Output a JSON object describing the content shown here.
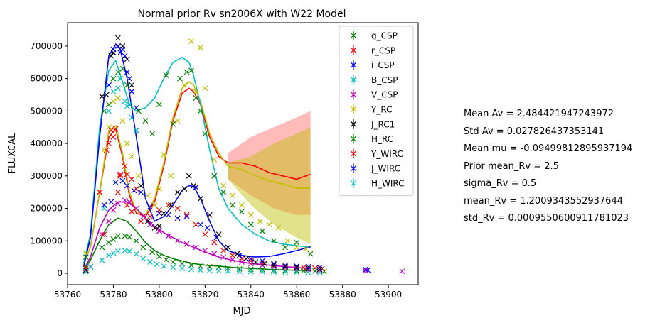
{
  "chart_data": {
    "type": "scatter",
    "title": "Normal prior Rv sn2006X with W22 Model",
    "xlabel": "MJD",
    "ylabel": "FLUXCAL",
    "xlim": [
      53760,
      53913
    ],
    "ylim": [
      -35000,
      772000
    ],
    "xticks": [
      53760,
      53780,
      53800,
      53820,
      53840,
      53860,
      53880,
      53900
    ],
    "yticks": [
      0,
      100000,
      200000,
      300000,
      400000,
      500000,
      600000,
      700000
    ],
    "grid": false,
    "legend_position": "top-right",
    "series": [
      {
        "name": "g_CSP",
        "color": "#008000",
        "x": [
          53768,
          53775,
          53778,
          53780,
          53782,
          53785,
          53787,
          53790,
          53793,
          53797,
          53800,
          53803,
          53806,
          53810,
          53814,
          53818,
          53822,
          53826,
          53830,
          53835,
          53840,
          53845,
          53850,
          53855,
          53860,
          53863,
          53868,
          53872
        ],
        "y": [
          20000,
          80000,
          95000,
          105000,
          115000,
          115000,
          112000,
          100000,
          80000,
          65000,
          52000,
          42000,
          35000,
          30000,
          25000,
          22000,
          20000,
          18000,
          15000,
          13000,
          12000,
          11000,
          10000,
          9000,
          8000,
          8000,
          7000,
          6000
        ]
      },
      {
        "name": "r_CSP",
        "color": "#ff0000",
        "x": [
          53768,
          53774,
          53777,
          53779,
          53781,
          53783,
          53786,
          53788,
          53792,
          53796,
          53800,
          53804,
          53808,
          53812,
          53816,
          53820,
          53824,
          53828,
          53832,
          53836,
          53840,
          53845,
          53850,
          53855,
          53860,
          53863,
          53868,
          53871
        ],
        "y": [
          15000,
          250000,
          380000,
          440000,
          445000,
          300000,
          210000,
          190000,
          160000,
          175000,
          195000,
          210000,
          200000,
          180000,
          150000,
          120000,
          95000,
          70000,
          55000,
          45000,
          38000,
          32000,
          28000,
          24000,
          20000,
          18000,
          16000,
          14000
        ]
      },
      {
        "name": "i_CSP",
        "color": "#0000ff",
        "x": [
          53768,
          53776,
          53779,
          53781,
          53784,
          53786,
          53789,
          53792,
          53796,
          53800,
          53804,
          53808,
          53812,
          53816,
          53818,
          53821,
          53825,
          53830,
          53835,
          53840,
          53845,
          53850,
          53855,
          53860,
          53865,
          53870,
          53890,
          53891
        ],
        "y": [
          10000,
          210000,
          220000,
          280000,
          285000,
          270000,
          255000,
          250000,
          205000,
          185000,
          180000,
          170000,
          175000,
          265000,
          150000,
          140000,
          110000,
          80000,
          55000,
          45000,
          38000,
          30000,
          25000,
          22000,
          20000,
          18000,
          12000,
          10000
        ]
      },
      {
        "name": "B_CSP",
        "color": "#00bfbf",
        "x": [
          53768,
          53775,
          53778,
          53780,
          53782,
          53785,
          53787,
          53790,
          53793,
          53796,
          53799,
          53802,
          53806,
          53810,
          53814,
          53818,
          53822,
          53826,
          53830,
          53835,
          53840,
          53845,
          53850,
          53855,
          53860,
          53865,
          53870
        ],
        "y": [
          5000,
          40000,
          55000,
          62000,
          68000,
          70000,
          68000,
          60000,
          45000,
          35000,
          28000,
          22000,
          18000,
          15000,
          12000,
          10000,
          9000,
          8000,
          7000,
          6000,
          5000,
          5000,
          4000,
          4000,
          3500,
          3000,
          3000
        ]
      },
      {
        "name": "V_CSP",
        "color": "#bf00bf",
        "x": [
          53768,
          53775,
          53778,
          53780,
          53782,
          53785,
          53787,
          53790,
          53793,
          53796,
          53800,
          53804,
          53808,
          53812,
          53816,
          53820,
          53824,
          53828,
          53832,
          53836,
          53840,
          53845,
          53850,
          53855,
          53860,
          53865,
          53870,
          53890,
          53906
        ],
        "y": [
          10000,
          120000,
          160000,
          195000,
          215000,
          225000,
          220000,
          200000,
          175000,
          150000,
          130000,
          115000,
          100000,
          90000,
          80000,
          70000,
          60000,
          50000,
          42000,
          35000,
          30000,
          25000,
          20000,
          17000,
          14000,
          12000,
          10000,
          8000,
          6000
        ]
      },
      {
        "name": "Y_RC",
        "color": "#bfbf00",
        "x": [
          53768,
          53776,
          53778,
          53780,
          53782,
          53784,
          53786,
          53788,
          53791,
          53795,
          53798,
          53800,
          53802,
          53805,
          53808,
          53811,
          53814,
          53816,
          53818,
          53820,
          53824,
          53828,
          53832,
          53836,
          53840,
          53844,
          53848,
          53852,
          53856,
          53860,
          53864
        ],
        "y": [
          60000,
          380000,
          450000,
          530000,
          540000,
          470000,
          400000,
          360000,
          300000,
          240000,
          210000,
          260000,
          365000,
          300000,
          470000,
          580000,
          715000,
          560000,
          695000,
          570000,
          350000,
          270000,
          240000,
          210000,
          180000,
          160000,
          150000,
          140000,
          100000,
          80000,
          75000
        ]
      },
      {
        "name": "J_RC1",
        "color": "#000000",
        "x": [
          53768,
          53775,
          53777,
          53779,
          53780,
          53782,
          53784,
          53786,
          53788,
          53790,
          53792,
          53795,
          53798,
          53800,
          53802,
          53805,
          53808,
          53811,
          53813,
          53815,
          53818,
          53822,
          53826,
          53830,
          53834,
          53838,
          53842,
          53846,
          53850,
          53855,
          53860,
          53865,
          53870
        ],
        "y": [
          10000,
          545000,
          550000,
          670000,
          680000,
          725000,
          700000,
          660000,
          580000,
          440000,
          270000,
          160000,
          140000,
          145000,
          185000,
          210000,
          250000,
          260000,
          300000,
          270000,
          230000,
          180000,
          120000,
          80000,
          60000,
          45000,
          35000,
          30000,
          25000,
          20000,
          18000,
          15000,
          12000
        ]
      },
      {
        "name": "H_RC",
        "color": "#008000",
        "x": [
          53768,
          53776,
          53778,
          53780,
          53782,
          53784,
          53786,
          53788,
          53791,
          53794,
          53797,
          53800,
          53803,
          53806,
          53809,
          53812,
          53814,
          53816,
          53818,
          53820,
          53824,
          53828,
          53832,
          53836,
          53840,
          53845,
          53850,
          53855,
          53860,
          53866
        ],
        "y": [
          50000,
          500000,
          520000,
          600000,
          620000,
          630000,
          580000,
          560000,
          500000,
          470000,
          430000,
          520000,
          610000,
          460000,
          600000,
          620000,
          625000,
          540000,
          500000,
          430000,
          300000,
          250000,
          210000,
          190000,
          150000,
          130000,
          100000,
          80000,
          95000,
          60000
        ]
      },
      {
        "name": "Y_WIRC",
        "color": "#ff0000",
        "x": [
          53770,
          53776,
          53778,
          53780,
          53782,
          53783,
          53785,
          53786,
          53788,
          53790
        ],
        "y": [
          20000,
          120000,
          400000,
          420000,
          250000,
          305000,
          330000,
          305000,
          290000,
          260000
        ]
      },
      {
        "name": "J_WIRC",
        "color": "#0000ff",
        "x": [
          53770,
          53776,
          53778,
          53780,
          53782,
          53783,
          53784,
          53785,
          53786,
          53787,
          53788,
          53790
        ],
        "y": [
          20000,
          210000,
          580000,
          690000,
          700000,
          680000,
          690000,
          670000,
          620000,
          600000,
          560000,
          510000
        ]
      },
      {
        "name": "H_WIRC",
        "color": "#00bfbf",
        "x": [
          53770,
          53776,
          53778,
          53780,
          53782,
          53783,
          53785,
          53786,
          53787,
          53788,
          53790
        ],
        "y": [
          20000,
          200000,
          500000,
          560000,
          570000,
          600000,
          530000,
          515000,
          520000,
          480000,
          440000
        ]
      }
    ],
    "models": [
      {
        "color": "#ff0000",
        "x": [
          53767,
          53770,
          53774,
          53778,
          53781,
          53784,
          53787,
          53790,
          53794,
          53798,
          53802,
          53806,
          53810,
          53813,
          53815,
          53818,
          53822,
          53826,
          53830,
          53836,
          53842,
          53848,
          53854,
          53860,
          53864,
          53866
        ],
        "y": [
          30000,
          80000,
          250000,
          420000,
          445000,
          360000,
          240000,
          185000,
          175000,
          220000,
          330000,
          470000,
          555000,
          570000,
          560000,
          520000,
          420000,
          360000,
          340000,
          340000,
          330000,
          310000,
          300000,
          290000,
          300000,
          305000
        ]
      },
      {
        "color": "#bfbf00",
        "x": [
          53767,
          53770,
          53774,
          53778,
          53781,
          53784,
          53787,
          53790,
          53794,
          53798,
          53802,
          53806,
          53810,
          53813,
          53815,
          53818,
          53822,
          53826,
          53830,
          53836,
          53842,
          53848,
          53854,
          53860,
          53864,
          53866
        ],
        "y": [
          30000,
          80000,
          250000,
          440000,
          455000,
          370000,
          250000,
          190000,
          180000,
          230000,
          340000,
          480000,
          570000,
          590000,
          580000,
          530000,
          430000,
          370000,
          330000,
          320000,
          300000,
          285000,
          275000,
          262000,
          262000,
          262000
        ]
      },
      {
        "color": "#00bfbf",
        "x": [
          53767,
          53770,
          53774,
          53778,
          53781,
          53784,
          53787,
          53790,
          53794,
          53798,
          53802,
          53806,
          53810,
          53813,
          53815,
          53818,
          53822,
          53826,
          53830,
          53836,
          53842,
          53848,
          53854,
          53860,
          53866
        ],
        "y": [
          30000,
          120000,
          450000,
          625000,
          655000,
          590000,
          520000,
          500000,
          510000,
          540000,
          600000,
          650000,
          665000,
          650000,
          610000,
          520000,
          380000,
          260000,
          200000,
          150000,
          120000,
          100000,
          90000,
          85000,
          80000
        ]
      },
      {
        "color": "#0000ff",
        "x": [
          53767,
          53770,
          53774,
          53778,
          53781,
          53783,
          53786,
          53790,
          53794,
          53798,
          53802,
          53806,
          53810,
          53813,
          53815,
          53818,
          53822,
          53826,
          53830,
          53836,
          53842,
          53848,
          53854,
          53860,
          53866
        ],
        "y": [
          20000,
          110000,
          420000,
          670000,
          705000,
          690000,
          600000,
          420000,
          230000,
          160000,
          175000,
          210000,
          255000,
          270000,
          268000,
          230000,
          160000,
          100000,
          70000,
          55000,
          50000,
          52000,
          60000,
          70000,
          82000
        ]
      },
      {
        "color": "#bf00bf",
        "x": [
          53767,
          53770,
          53774,
          53778,
          53782,
          53786,
          53790,
          53794,
          53798,
          53802,
          53806,
          53810,
          53815,
          53820,
          53826,
          53832,
          53840,
          53848,
          53856,
          53866
        ],
        "y": [
          10000,
          50000,
          140000,
          195000,
          220000,
          220000,
          200000,
          170000,
          145000,
          125000,
          110000,
          95000,
          80000,
          65000,
          50000,
          40000,
          30000,
          25000,
          20000,
          15000
        ]
      },
      {
        "color": "#008000",
        "x": [
          53767,
          53770,
          53774,
          53778,
          53782,
          53786,
          53790,
          53794,
          53798,
          53802,
          53806,
          53810,
          53815,
          53820,
          53826,
          53832,
          53840,
          53848,
          53856,
          53866
        ],
        "y": [
          10000,
          40000,
          100000,
          150000,
          170000,
          160000,
          130000,
          95000,
          70000,
          55000,
          45000,
          38000,
          30000,
          25000,
          22000,
          18000,
          15000,
          12000,
          10000,
          8000
        ]
      }
    ],
    "bands": [
      {
        "color": "#ff6666",
        "x": [
          53830,
          53840,
          53850,
          53860,
          53866
        ],
        "low": [
          290000,
          240000,
          200000,
          180000,
          180000
        ],
        "high": [
          370000,
          420000,
          450000,
          480000,
          500000
        ]
      },
      {
        "color": "#bfbf00",
        "x": [
          53830,
          53840,
          53850,
          53860,
          53866
        ],
        "low": [
          290000,
          210000,
          150000,
          110000,
          90000
        ],
        "high": [
          340000,
          360000,
          400000,
          430000,
          450000
        ]
      }
    ]
  },
  "stats": {
    "mean_av": "Mean Av = 2.484421947243972",
    "std_av": "Std Av = 0.027826437353141",
    "mean_mu": "Mean mu = -0.09499812895937194",
    "prior_mean_rv": "Prior mean_Rv = 2.5",
    "sigma_rv": "sigma_Rv = 0.5",
    "mean_rv": "mean_Rv = 1.2009343552937644",
    "std_rv": "std_Rv = 0.0009550600911781023"
  }
}
